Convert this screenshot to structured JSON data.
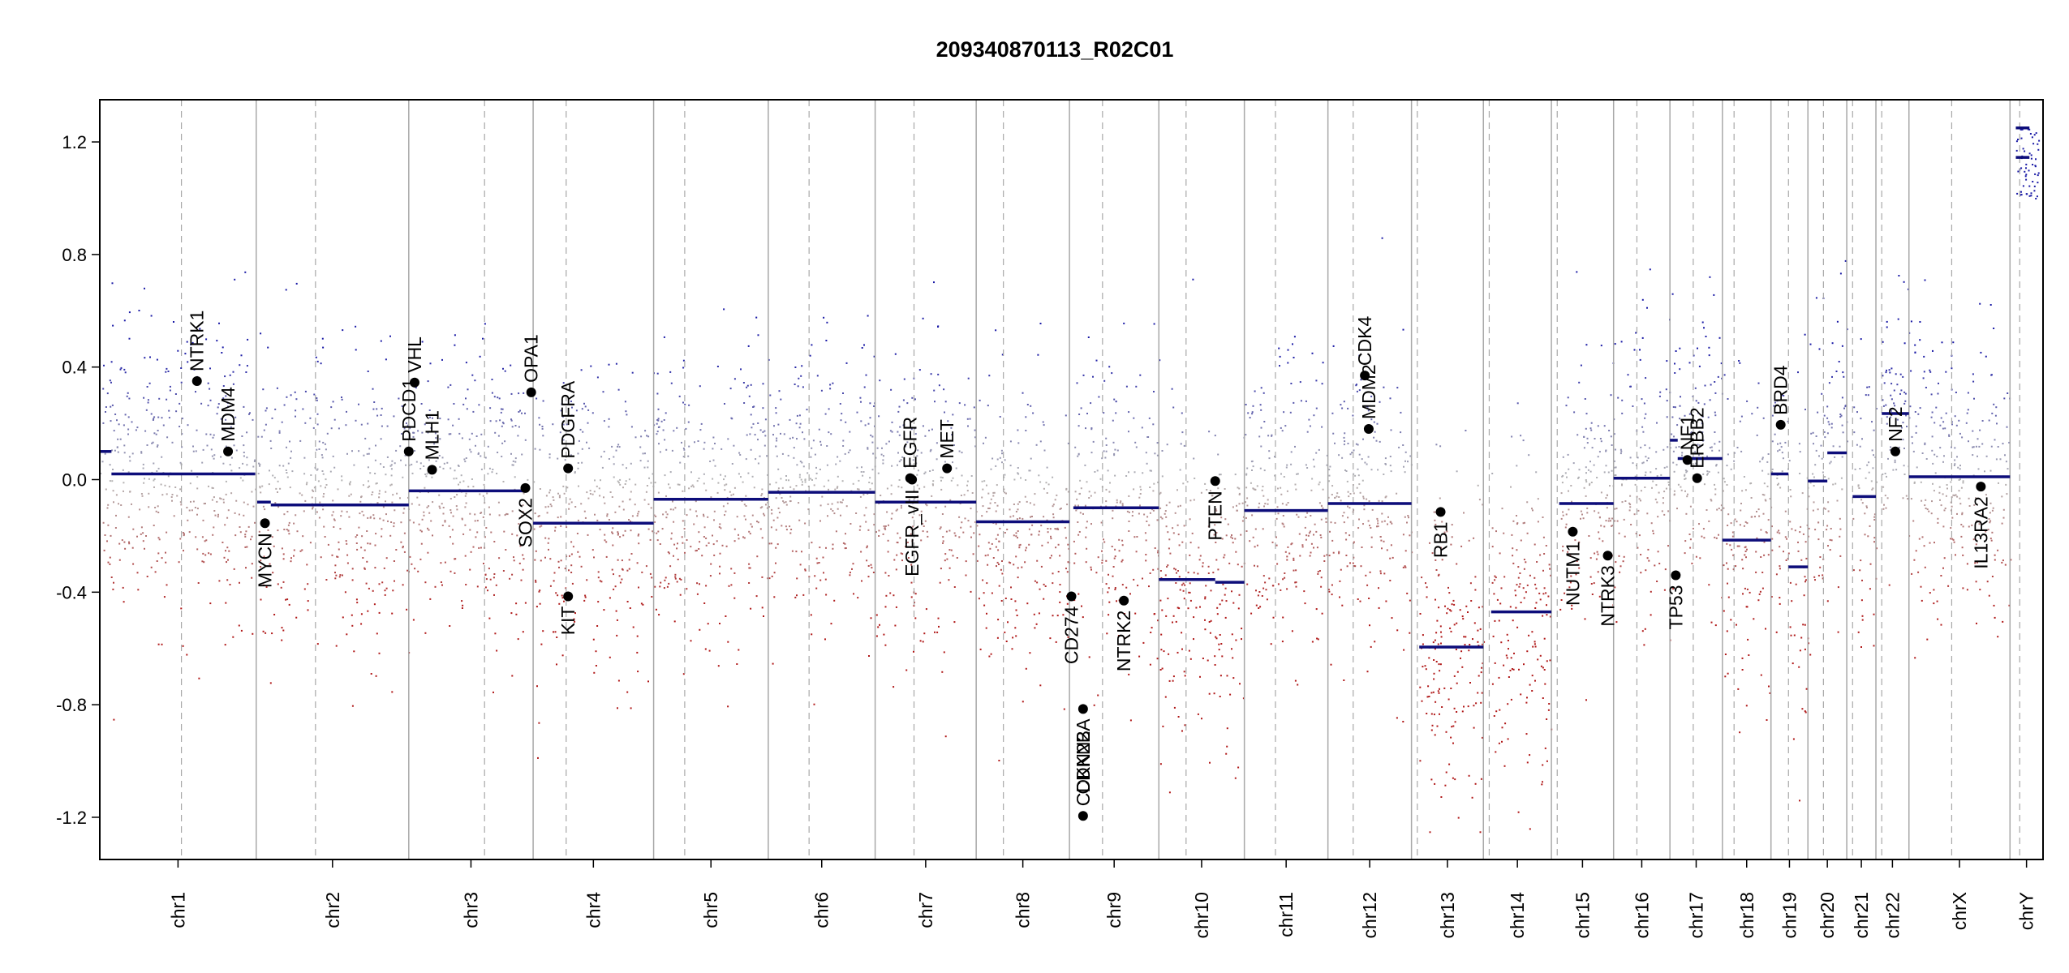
{
  "chart_data": {
    "type": "scatter",
    "title": "209340870113_R02C01",
    "xlabel": "",
    "ylabel": "",
    "ylim": [
      -1.35,
      1.35
    ],
    "y_ticks": [
      "1.2",
      "0.8",
      "0.4",
      "0.0",
      "-0.4",
      "-0.8",
      "-1.2"
    ],
    "y_tick_values": [
      1.2,
      0.8,
      0.4,
      0.0,
      -0.4,
      -0.8,
      -1.2
    ],
    "grid": false,
    "legend": "none",
    "colors": {
      "gain": "#1a1aa6",
      "neutral": "#b4b4b4",
      "loss": "#b01818",
      "segment": "#0d0d7a",
      "marker": "#000000",
      "boundary": "#a8a8a8"
    },
    "chromosomes": [
      {
        "name": "chr1",
        "start": 0.0,
        "end": 0.0805,
        "centromere": 0.042
      },
      {
        "name": "chr2",
        "start": 0.0805,
        "end": 0.159,
        "centromere": 0.111
      },
      {
        "name": "chr3",
        "start": 0.159,
        "end": 0.223,
        "centromere": 0.198
      },
      {
        "name": "chr4",
        "start": 0.223,
        "end": 0.285,
        "centromere": 0.24
      },
      {
        "name": "chr5",
        "start": 0.285,
        "end": 0.344,
        "centromere": 0.301
      },
      {
        "name": "chr6",
        "start": 0.344,
        "end": 0.399,
        "centromere": 0.365
      },
      {
        "name": "chr7",
        "start": 0.399,
        "end": 0.451,
        "centromere": 0.419
      },
      {
        "name": "chr8",
        "start": 0.451,
        "end": 0.499,
        "centromere": 0.465
      },
      {
        "name": "chr9",
        "start": 0.499,
        "end": 0.545,
        "centromere": 0.516
      },
      {
        "name": "chr10",
        "start": 0.545,
        "end": 0.589,
        "centromere": 0.559
      },
      {
        "name": "chr11",
        "start": 0.589,
        "end": 0.632,
        "centromere": 0.605
      },
      {
        "name": "chr12",
        "start": 0.632,
        "end": 0.675,
        "centromere": 0.645
      },
      {
        "name": "chr13",
        "start": 0.675,
        "end": 0.712,
        "centromere": 0.678
      },
      {
        "name": "chr14",
        "start": 0.712,
        "end": 0.747,
        "centromere": 0.715
      },
      {
        "name": "chr15",
        "start": 0.747,
        "end": 0.779,
        "centromere": 0.75
      },
      {
        "name": "chr16",
        "start": 0.779,
        "end": 0.808,
        "centromere": 0.791
      },
      {
        "name": "chr17",
        "start": 0.808,
        "end": 0.835,
        "centromere": 0.82
      },
      {
        "name": "chr18",
        "start": 0.835,
        "end": 0.86,
        "centromere": 0.841
      },
      {
        "name": "chr19",
        "start": 0.86,
        "end": 0.879,
        "centromere": 0.869
      },
      {
        "name": "chr20",
        "start": 0.879,
        "end": 0.899,
        "centromere": 0.887
      },
      {
        "name": "chr21",
        "start": 0.899,
        "end": 0.914,
        "centromere": 0.902
      },
      {
        "name": "chr22",
        "start": 0.914,
        "end": 0.931,
        "centromere": 0.917
      },
      {
        "name": "chrX",
        "start": 0.931,
        "end": 0.983,
        "centromere": 0.953
      },
      {
        "name": "chrY",
        "start": 0.983,
        "end": 1.0,
        "centromere": 0.988
      }
    ],
    "segments": [
      {
        "chr": "chr1",
        "x0": 0.0,
        "x1": 0.006,
        "y": 0.1
      },
      {
        "chr": "chr1",
        "x0": 0.006,
        "x1": 0.08,
        "y": 0.02
      },
      {
        "chr": "chr2",
        "x0": 0.081,
        "x1": 0.088,
        "y": -0.08
      },
      {
        "chr": "chr2",
        "x0": 0.088,
        "x1": 0.159,
        "y": -0.09
      },
      {
        "chr": "chr3",
        "x0": 0.159,
        "x1": 0.22,
        "y": -0.04
      },
      {
        "chr": "chr4",
        "x0": 0.223,
        "x1": 0.285,
        "y": -0.155
      },
      {
        "chr": "chr5",
        "x0": 0.285,
        "x1": 0.344,
        "y": -0.07
      },
      {
        "chr": "chr6",
        "x0": 0.344,
        "x1": 0.399,
        "y": -0.045
      },
      {
        "chr": "chr7",
        "x0": 0.399,
        "x1": 0.451,
        "y": -0.08
      },
      {
        "chr": "chr8",
        "x0": 0.451,
        "x1": 0.499,
        "y": -0.15
      },
      {
        "chr": "chr9",
        "x0": 0.501,
        "x1": 0.545,
        "y": -0.1
      },
      {
        "chr": "chr10",
        "x0": 0.545,
        "x1": 0.574,
        "y": -0.355
      },
      {
        "chr": "chr10",
        "x0": 0.574,
        "x1": 0.589,
        "y": -0.365
      },
      {
        "chr": "chr11",
        "x0": 0.589,
        "x1": 0.632,
        "y": -0.11
      },
      {
        "chr": "chr12",
        "x0": 0.632,
        "x1": 0.675,
        "y": -0.085
      },
      {
        "chr": "chr13",
        "x0": 0.679,
        "x1": 0.712,
        "y": -0.595
      },
      {
        "chr": "chr14",
        "x0": 0.716,
        "x1": 0.747,
        "y": -0.47
      },
      {
        "chr": "chr15",
        "x0": 0.751,
        "x1": 0.779,
        "y": -0.085
      },
      {
        "chr": "chr16",
        "x0": 0.779,
        "x1": 0.808,
        "y": 0.005
      },
      {
        "chr": "chr17",
        "x0": 0.808,
        "x1": 0.812,
        "y": 0.14
      },
      {
        "chr": "chr17",
        "x0": 0.812,
        "x1": 0.835,
        "y": 0.075
      },
      {
        "chr": "chr18",
        "x0": 0.835,
        "x1": 0.86,
        "y": -0.215
      },
      {
        "chr": "chr19",
        "x0": 0.86,
        "x1": 0.869,
        "y": 0.02
      },
      {
        "chr": "chr19",
        "x0": 0.869,
        "x1": 0.879,
        "y": -0.31
      },
      {
        "chr": "chr20",
        "x0": 0.879,
        "x1": 0.889,
        "y": -0.005
      },
      {
        "chr": "chr20",
        "x0": 0.889,
        "x1": 0.899,
        "y": 0.095
      },
      {
        "chr": "chr21",
        "x0": 0.902,
        "x1": 0.914,
        "y": -0.06
      },
      {
        "chr": "chr22",
        "x0": 0.917,
        "x1": 0.931,
        "y": 0.235
      },
      {
        "chr": "chrX",
        "x0": 0.931,
        "x1": 0.983,
        "y": 0.01
      },
      {
        "chr": "chrY",
        "x0": 0.986,
        "x1": 0.993,
        "y": 1.25
      },
      {
        "chr": "chrY",
        "x0": 0.986,
        "x1": 0.993,
        "y": 1.145
      }
    ],
    "genes": [
      {
        "name": "NTRK1",
        "x": 0.05,
        "y": 0.35,
        "label_side": "above"
      },
      {
        "name": "MDM4",
        "x": 0.066,
        "y": 0.1,
        "label_side": "above"
      },
      {
        "name": "MYCN",
        "x": 0.085,
        "y": -0.155,
        "label_side": "below"
      },
      {
        "name": "PDCD1",
        "x": 0.159,
        "y": 0.1,
        "label_side": "above"
      },
      {
        "name": "VHL",
        "x": 0.162,
        "y": 0.345,
        "label_side": "above"
      },
      {
        "name": "MLH1",
        "x": 0.171,
        "y": 0.035,
        "label_side": "above"
      },
      {
        "name": "SOX2",
        "x": 0.219,
        "y": -0.03,
        "label_side": "below"
      },
      {
        "name": "OPA1",
        "x": 0.222,
        "y": 0.31,
        "label_side": "above"
      },
      {
        "name": "PDGFRA",
        "x": 0.241,
        "y": 0.04,
        "label_side": "above"
      },
      {
        "name": "KIT",
        "x": 0.241,
        "y": -0.415,
        "label_side": "below"
      },
      {
        "name": "EGFR",
        "x": 0.417,
        "y": 0.005,
        "label_side": "above"
      },
      {
        "name": "EGFR_vIII",
        "x": 0.418,
        "y": 0.0,
        "label_side": "below"
      },
      {
        "name": "MET",
        "x": 0.436,
        "y": 0.04,
        "label_side": "above"
      },
      {
        "name": "CD274",
        "x": 0.5,
        "y": -0.415,
        "label_side": "below"
      },
      {
        "name": "CDKN2A",
        "x": 0.506,
        "y": -0.815,
        "label_side": "below"
      },
      {
        "name": "CDKN2B",
        "x": 0.506,
        "y": -1.195,
        "label_side": "above"
      },
      {
        "name": "NTRK2",
        "x": 0.527,
        "y": -0.43,
        "label_side": "below"
      },
      {
        "name": "PTEN",
        "x": 0.574,
        "y": -0.005,
        "label_side": "below"
      },
      {
        "name": "CDK4",
        "x": 0.651,
        "y": 0.37,
        "label_side": "above"
      },
      {
        "name": "MDM2",
        "x": 0.653,
        "y": 0.18,
        "label_side": "above"
      },
      {
        "name": "RB1",
        "x": 0.69,
        "y": -0.115,
        "label_side": "below"
      },
      {
        "name": "NUTM1",
        "x": 0.758,
        "y": -0.185,
        "label_side": "below"
      },
      {
        "name": "NTRK3",
        "x": 0.776,
        "y": -0.27,
        "label_side": "below"
      },
      {
        "name": "TP53",
        "x": 0.811,
        "y": -0.34,
        "label_side": "below"
      },
      {
        "name": "NF1",
        "x": 0.817,
        "y": 0.07,
        "label_side": "above"
      },
      {
        "name": "ERBB2",
        "x": 0.822,
        "y": 0.005,
        "label_side": "above"
      },
      {
        "name": "BRD4",
        "x": 0.865,
        "y": 0.195,
        "label_side": "above"
      },
      {
        "name": "NF2",
        "x": 0.924,
        "y": 0.1,
        "label_side": "above"
      },
      {
        "name": "IL13RA2",
        "x": 0.968,
        "y": -0.025,
        "label_side": "below"
      }
    ]
  }
}
